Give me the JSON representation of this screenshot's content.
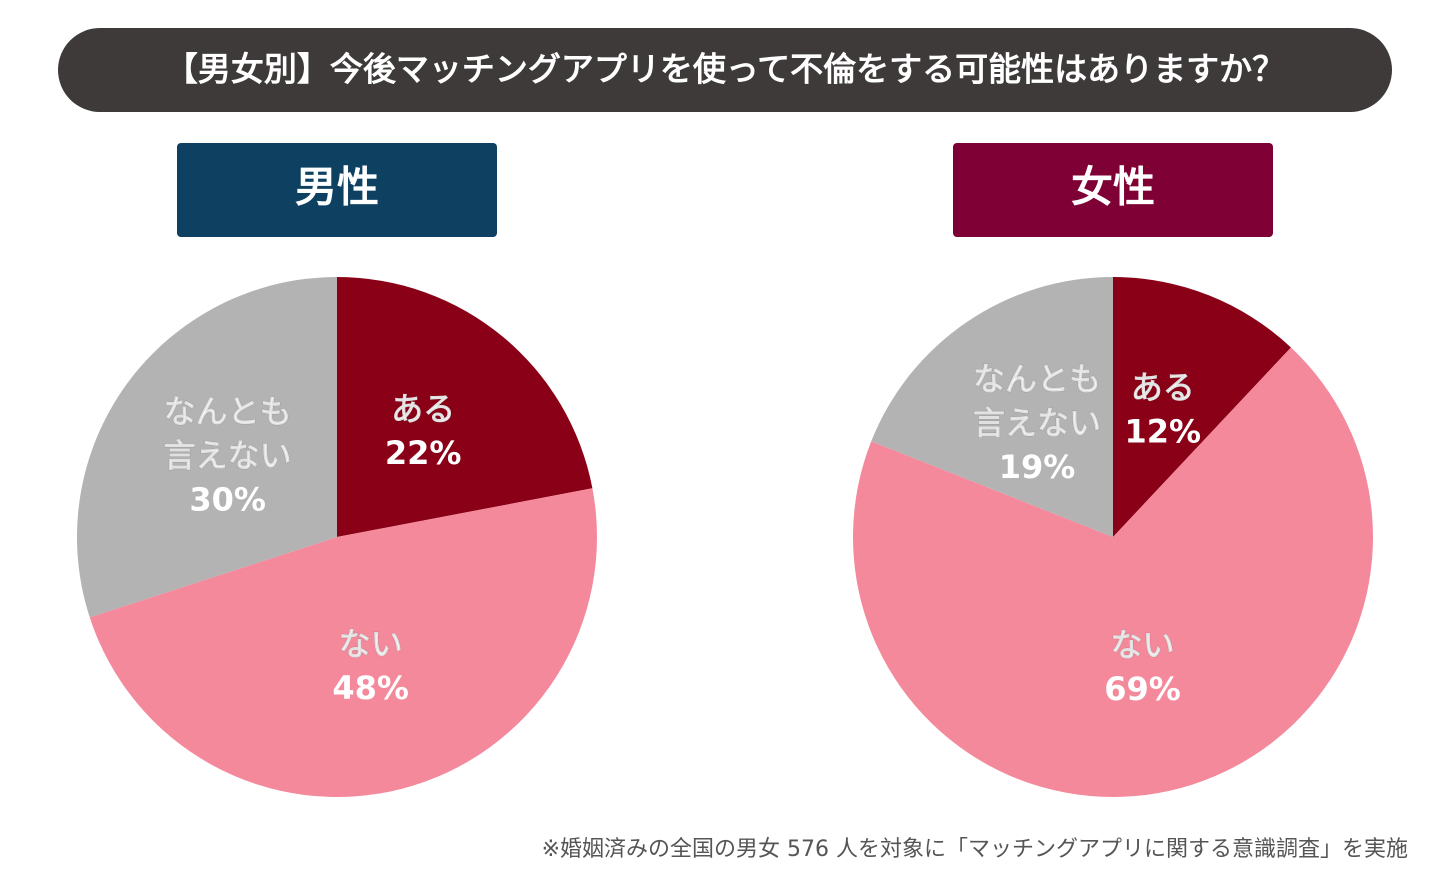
{
  "title": "【男女別】今後マッチングアプリを使って不倫をする可能性はありますか？",
  "note": "※婚姻済みの全国の男女 576 人を対象に「マッチングアプリに関する意識調査」を実施",
  "chart_data": [
    {
      "type": "pie",
      "title": "男性",
      "header_color": "#0d4061",
      "categories": [
        "ある",
        "ない",
        "なんとも\n言えない"
      ],
      "values": [
        22,
        48,
        30
      ],
      "value_labels": [
        "22%",
        "48%",
        "30%"
      ],
      "colors": [
        "#8a0016",
        "#f4899b",
        "#b3b3b3"
      ]
    },
    {
      "type": "pie",
      "title": "女性",
      "header_color": "#7f0035",
      "categories": [
        "ある",
        "ない",
        "なんとも\n言えない"
      ],
      "values": [
        12,
        69,
        19
      ],
      "value_labels": [
        "12%",
        "69%",
        "19%"
      ],
      "colors": [
        "#8a0016",
        "#f4899b",
        "#b3b3b3"
      ]
    }
  ]
}
